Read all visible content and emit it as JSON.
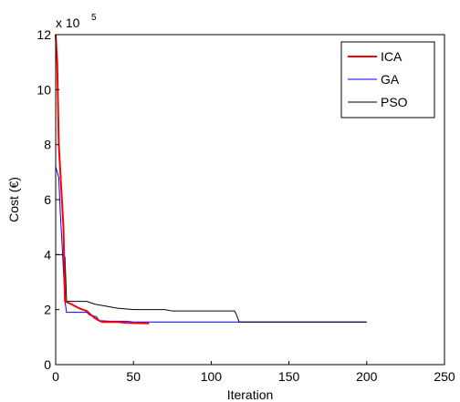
{
  "chart_data": {
    "type": "line",
    "title": "",
    "xlabel": "Iteration",
    "ylabel": "Cost (€)",
    "y_multiplier_label": {
      "base": "x 10",
      "exponent": "5"
    },
    "xlim": [
      0,
      250
    ],
    "ylim": [
      0,
      12
    ],
    "x_ticks": [
      0,
      50,
      100,
      150,
      200,
      250
    ],
    "y_ticks": [
      0,
      2,
      4,
      6,
      8,
      10,
      12
    ],
    "grid": false,
    "legend_position": "top-right",
    "series": [
      {
        "name": "ICA",
        "color": "#ff0000",
        "points": [
          [
            0,
            12.0
          ],
          [
            1,
            11.0
          ],
          [
            2,
            8.0
          ],
          [
            3,
            7.0
          ],
          [
            4,
            6.0
          ],
          [
            5,
            5.0
          ],
          [
            6,
            2.3
          ],
          [
            10,
            2.2
          ],
          [
            15,
            2.05
          ],
          [
            20,
            1.95
          ],
          [
            22,
            1.85
          ],
          [
            25,
            1.7
          ],
          [
            28,
            1.6
          ],
          [
            30,
            1.55
          ],
          [
            40,
            1.55
          ],
          [
            45,
            1.52
          ],
          [
            60,
            1.5
          ]
        ]
      },
      {
        "name": "GA",
        "color": "#0000ff",
        "points": [
          [
            0,
            7.2
          ],
          [
            2,
            6.8
          ],
          [
            3,
            5.5
          ],
          [
            4,
            4.5
          ],
          [
            6,
            2.3
          ],
          [
            7,
            1.9
          ],
          [
            20,
            1.9
          ],
          [
            22,
            1.8
          ],
          [
            26,
            1.75
          ],
          [
            28,
            1.6
          ],
          [
            35,
            1.58
          ],
          [
            45,
            1.58
          ],
          [
            50,
            1.55
          ],
          [
            200,
            1.55
          ]
        ]
      },
      {
        "name": "PSO",
        "color": "#000000",
        "points": [
          [
            0,
            4.0
          ],
          [
            5,
            4.0
          ],
          [
            6,
            3.9
          ],
          [
            7,
            2.3
          ],
          [
            20,
            2.3
          ],
          [
            25,
            2.2
          ],
          [
            30,
            2.15
          ],
          [
            40,
            2.05
          ],
          [
            50,
            2.0
          ],
          [
            70,
            2.0
          ],
          [
            75,
            1.95
          ],
          [
            115,
            1.95
          ],
          [
            116,
            1.85
          ],
          [
            118,
            1.55
          ],
          [
            200,
            1.55
          ]
        ]
      }
    ]
  }
}
